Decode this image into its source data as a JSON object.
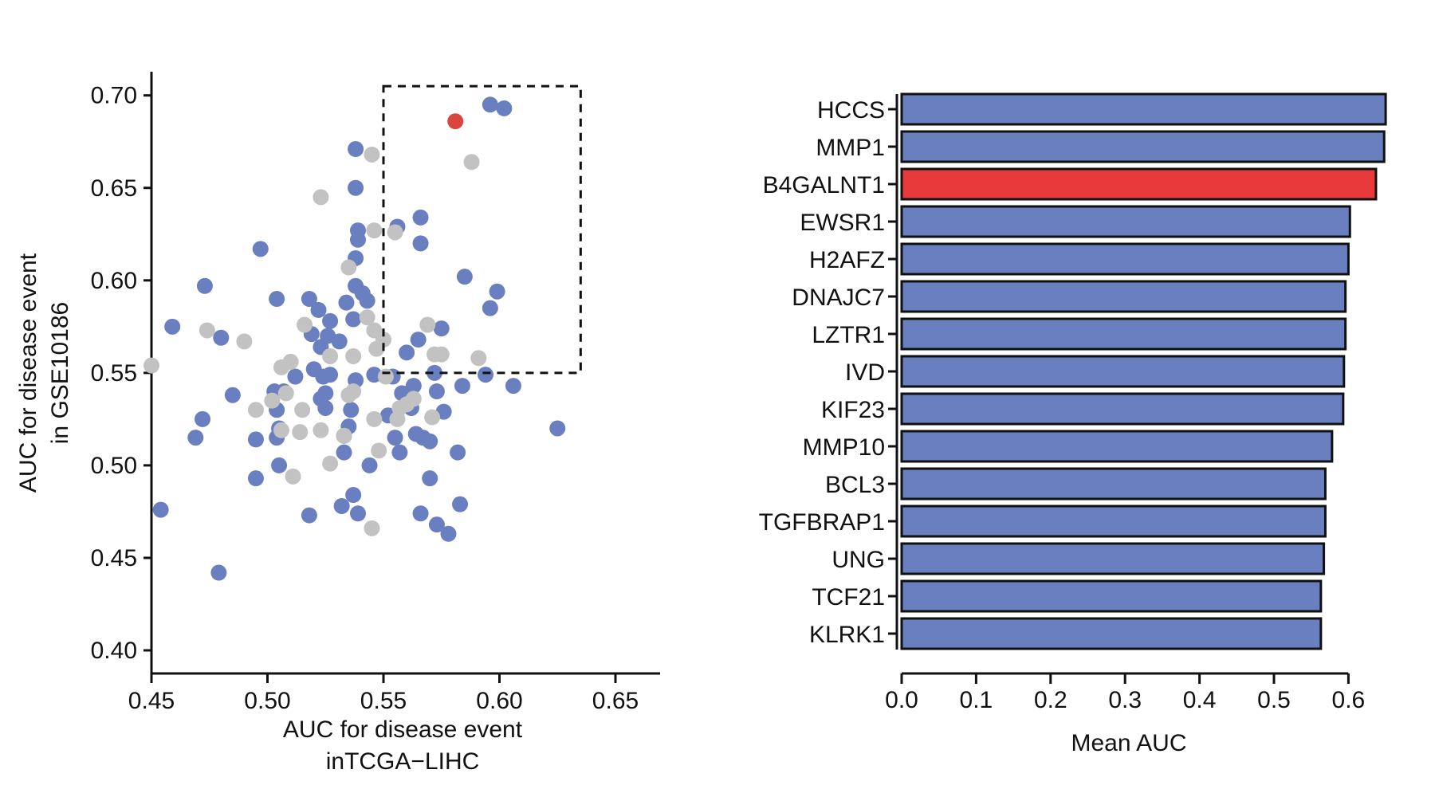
{
  "chart_data": [
    {
      "type": "scatter",
      "xlabel": [
        "AUC for disease event",
        "inTCGA−LIHC"
      ],
      "ylabel": [
        "AUC for disease event",
        "in GSE10186"
      ],
      "xlim": [
        0.45,
        0.65
      ],
      "ylim": [
        0.4,
        0.7
      ],
      "xticks": [
        "0.45",
        "0.50",
        "0.55",
        "0.60",
        "0.65"
      ],
      "yticks": [
        "0.40",
        "0.45",
        "0.50",
        "0.55",
        "0.60",
        "0.65",
        "0.70"
      ],
      "highlight_box": {
        "x": [
          0.55,
          0.635
        ],
        "y": [
          0.55,
          0.705
        ]
      },
      "colors": {
        "blue": "#6a7fbf",
        "gray": "#c2c2c2",
        "red": "#d9463e"
      },
      "series": [
        {
          "color": "blue",
          "points": [
            [
              0.454,
              0.476
            ],
            [
              0.459,
              0.575
            ],
            [
              0.469,
              0.515
            ],
            [
              0.472,
              0.525
            ],
            [
              0.473,
              0.597
            ],
            [
              0.479,
              0.442
            ],
            [
              0.48,
              0.569
            ],
            [
              0.485,
              0.538
            ],
            [
              0.495,
              0.514
            ],
            [
              0.495,
              0.493
            ],
            [
              0.497,
              0.617
            ],
            [
              0.503,
              0.54
            ],
            [
              0.504,
              0.53
            ],
            [
              0.504,
              0.515
            ],
            [
              0.504,
              0.59
            ],
            [
              0.505,
              0.52
            ],
            [
              0.505,
              0.5
            ],
            [
              0.507,
              0.54
            ],
            [
              0.512,
              0.548
            ],
            [
              0.518,
              0.59
            ],
            [
              0.518,
              0.473
            ],
            [
              0.519,
              0.571
            ],
            [
              0.52,
              0.552
            ],
            [
              0.522,
              0.584
            ],
            [
              0.523,
              0.564
            ],
            [
              0.523,
              0.536
            ],
            [
              0.524,
              0.548
            ],
            [
              0.525,
              0.531
            ],
            [
              0.525,
              0.539
            ],
            [
              0.526,
              0.57
            ],
            [
              0.527,
              0.578
            ],
            [
              0.527,
              0.549
            ],
            [
              0.531,
              0.567
            ],
            [
              0.532,
              0.478
            ],
            [
              0.533,
              0.507
            ],
            [
              0.533,
              0.516
            ],
            [
              0.534,
              0.588
            ],
            [
              0.535,
              0.521
            ],
            [
              0.536,
              0.53
            ],
            [
              0.537,
              0.579
            ],
            [
              0.537,
              0.484
            ],
            [
              0.538,
              0.671
            ],
            [
              0.538,
              0.65
            ],
            [
              0.538,
              0.612
            ],
            [
              0.538,
              0.597
            ],
            [
              0.538,
              0.546
            ],
            [
              0.539,
              0.622
            ],
            [
              0.539,
              0.627
            ],
            [
              0.539,
              0.474
            ],
            [
              0.541,
              0.593
            ],
            [
              0.543,
              0.589
            ],
            [
              0.544,
              0.5
            ],
            [
              0.546,
              0.549
            ],
            [
              0.552,
              0.527
            ],
            [
              0.554,
              0.548
            ],
            [
              0.555,
              0.515
            ],
            [
              0.556,
              0.629
            ],
            [
              0.557,
              0.507
            ],
            [
              0.558,
              0.539
            ],
            [
              0.56,
              0.561
            ],
            [
              0.562,
              0.531
            ],
            [
              0.563,
              0.543
            ],
            [
              0.564,
              0.517
            ],
            [
              0.565,
              0.568
            ],
            [
              0.566,
              0.474
            ],
            [
              0.566,
              0.634
            ],
            [
              0.566,
              0.62
            ],
            [
              0.567,
              0.515
            ],
            [
              0.57,
              0.513
            ],
            [
              0.57,
              0.493
            ],
            [
              0.572,
              0.55
            ],
            [
              0.573,
              0.468
            ],
            [
              0.573,
              0.54
            ],
            [
              0.575,
              0.574
            ],
            [
              0.576,
              0.529
            ],
            [
              0.578,
              0.463
            ],
            [
              0.582,
              0.507
            ],
            [
              0.583,
              0.479
            ],
            [
              0.584,
              0.543
            ],
            [
              0.585,
              0.602
            ],
            [
              0.594,
              0.549
            ],
            [
              0.596,
              0.585
            ],
            [
              0.596,
              0.695
            ],
            [
              0.599,
              0.594
            ],
            [
              0.602,
              0.693
            ],
            [
              0.606,
              0.543
            ],
            [
              0.625,
              0.52
            ]
          ]
        },
        {
          "color": "gray",
          "points": [
            [
              0.45,
              0.554
            ],
            [
              0.474,
              0.573
            ],
            [
              0.49,
              0.567
            ],
            [
              0.495,
              0.53
            ],
            [
              0.502,
              0.535
            ],
            [
              0.506,
              0.553
            ],
            [
              0.506,
              0.519
            ],
            [
              0.508,
              0.539
            ],
            [
              0.51,
              0.556
            ],
            [
              0.511,
              0.494
            ],
            [
              0.514,
              0.518
            ],
            [
              0.515,
              0.53
            ],
            [
              0.516,
              0.576
            ],
            [
              0.523,
              0.645
            ],
            [
              0.523,
              0.519
            ],
            [
              0.527,
              0.501
            ],
            [
              0.527,
              0.559
            ],
            [
              0.533,
              0.516
            ],
            [
              0.535,
              0.607
            ],
            [
              0.535,
              0.538
            ],
            [
              0.537,
              0.54
            ],
            [
              0.537,
              0.559
            ],
            [
              0.543,
              0.58
            ],
            [
              0.545,
              0.466
            ],
            [
              0.545,
              0.668
            ],
            [
              0.546,
              0.573
            ],
            [
              0.546,
              0.627
            ],
            [
              0.546,
              0.525
            ],
            [
              0.547,
              0.563
            ],
            [
              0.548,
              0.508
            ],
            [
              0.55,
              0.568
            ],
            [
              0.551,
              0.548
            ],
            [
              0.555,
              0.626
            ],
            [
              0.556,
              0.525
            ],
            [
              0.557,
              0.531
            ],
            [
              0.56,
              0.533
            ],
            [
              0.563,
              0.536
            ],
            [
              0.569,
              0.576
            ],
            [
              0.571,
              0.526
            ],
            [
              0.572,
              0.56
            ],
            [
              0.575,
              0.56
            ],
            [
              0.588,
              0.664
            ],
            [
              0.591,
              0.558
            ]
          ]
        },
        {
          "color": "red",
          "points": [
            [
              0.581,
              0.686
            ]
          ]
        }
      ]
    },
    {
      "type": "bar",
      "orientation": "horizontal",
      "xlabel": "Mean AUC",
      "xlim": [
        0.0,
        0.65
      ],
      "xticks": [
        "0.0",
        "0.1",
        "0.2",
        "0.3",
        "0.4",
        "0.5",
        "0.6"
      ],
      "colors": {
        "bar": "#6a7fbf",
        "highlight": "#e8393b"
      },
      "categories": [
        "HCCS",
        "MMP1",
        "B4GALNT1",
        "EWSR1",
        "H2AFZ",
        "DNAJC7",
        "LZTR1",
        "IVD",
        "KIF23",
        "MMP10",
        "BCL3",
        "TGFBRAP1",
        "UNG",
        "TCF21",
        "KLRK1"
      ],
      "values": [
        0.65,
        0.648,
        0.637,
        0.602,
        0.6,
        0.596,
        0.596,
        0.594,
        0.593,
        0.578,
        0.569,
        0.569,
        0.567,
        0.563,
        0.563
      ],
      "highlight": "B4GALNT1"
    }
  ]
}
